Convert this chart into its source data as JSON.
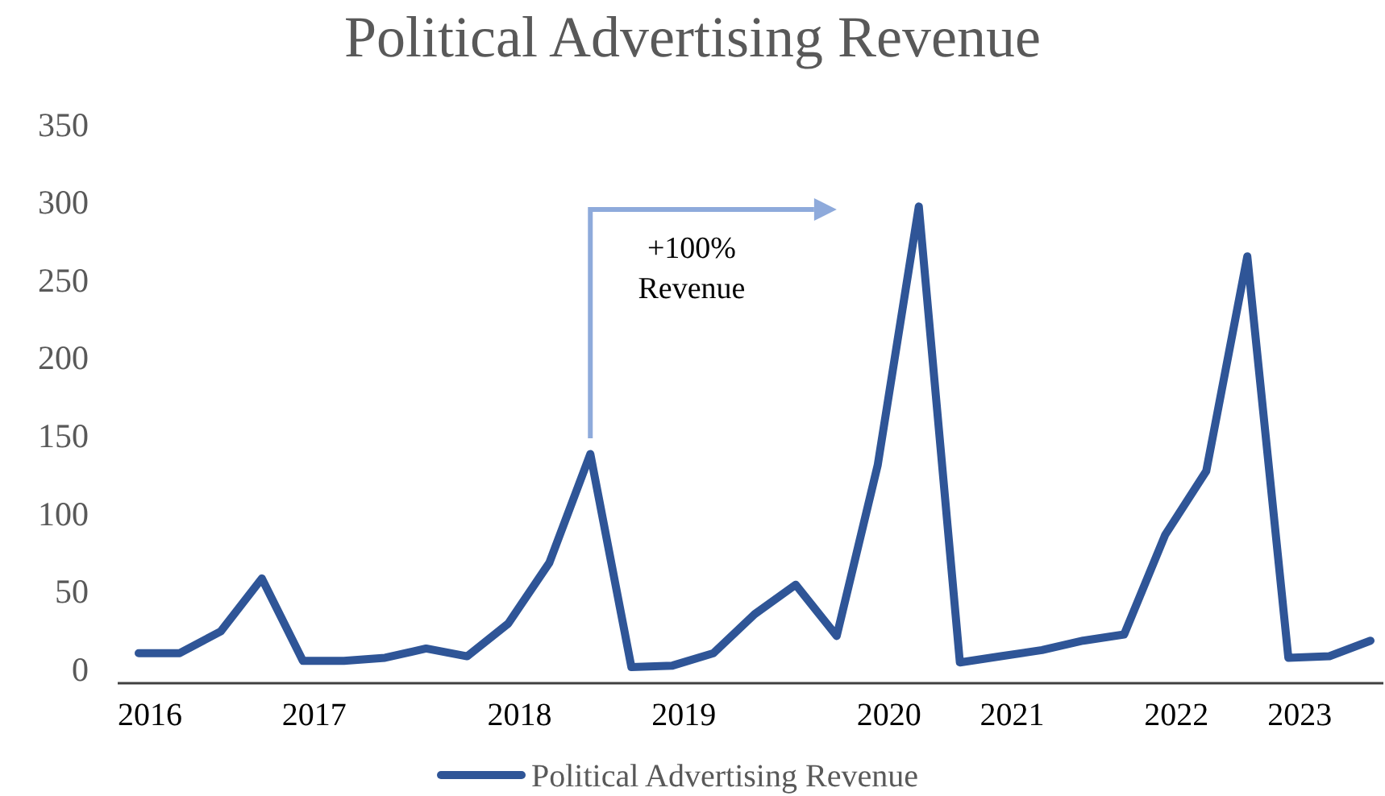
{
  "chart_data": {
    "type": "line",
    "title": "Political Advertising Revenue",
    "categories": [
      "2016",
      null,
      null,
      null,
      "2017",
      null,
      null,
      null,
      null,
      "2018",
      null,
      null,
      null,
      "2019",
      null,
      null,
      null,
      null,
      "2020",
      null,
      null,
      "2021",
      null,
      null,
      null,
      "2022",
      null,
      null,
      "2023",
      null,
      null
    ],
    "series": [
      {
        "name": "Political Advertising Revenue",
        "color": "#2f5597",
        "values": [
          10,
          10,
          24,
          58,
          5,
          5,
          7,
          13,
          8,
          29,
          68,
          138,
          1,
          2,
          10,
          35,
          54,
          21,
          131,
          297,
          4,
          8,
          12,
          18,
          22,
          86,
          127,
          265,
          7,
          8,
          18
        ]
      }
    ],
    "ylim": [
      0,
      350
    ],
    "yticks": [
      0,
      50,
      100,
      150,
      200,
      250,
      300,
      350
    ],
    "annotations": [
      "+100%\nRevenue"
    ],
    "grid": false,
    "legend": "bottom",
    "marker": "none",
    "line_style": "solid"
  }
}
